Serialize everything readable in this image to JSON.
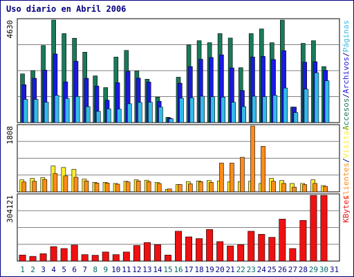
{
  "title": "Uso diario en Abril 2006",
  "colors": {
    "title": "#000080",
    "frame": "#000000",
    "grid": "#808080",
    "axis_label_weekday": "#000080",
    "axis_label_weekend": "#006666",
    "accesos": "#1a7a5a",
    "archivos": "#1a1ae0",
    "paginas": "#33bbe8",
    "visitas": "#ffee33",
    "clientes": "#ff8c1a",
    "kbytes": "#ee1111"
  },
  "chart_data": [
    {
      "type": "bar",
      "name": "hits-files-pages",
      "ymax_label": "4630",
      "ylim": [
        0,
        4630
      ],
      "legend": [
        {
          "text": "Accesos",
          "color": "#1a7a5a"
        },
        {
          "text": "/",
          "color": "#000080"
        },
        {
          "text": "Archivos",
          "color": "#1a1ae0"
        },
        {
          "text": "/",
          "color": "#000080"
        },
        {
          "text": "Páginas",
          "color": "#33bbe8"
        }
      ],
      "categories": [
        "1",
        "2",
        "3",
        "4",
        "5",
        "6",
        "7",
        "8",
        "9",
        "10",
        "11",
        "12",
        "13",
        "14",
        "15",
        "16",
        "17",
        "18",
        "19",
        "20",
        "21",
        "22",
        "23",
        "24",
        "25",
        "26",
        "27",
        "28",
        "29",
        "30",
        "31"
      ],
      "weekend": [
        "1",
        "2",
        "8",
        "9",
        "15",
        "16",
        "22",
        "23",
        "29",
        "30"
      ],
      "series": [
        {
          "name": "Accesos",
          "values": [
            2200,
            2350,
            3480,
            4630,
            4020,
            3810,
            3180,
            2110,
            1580,
            2960,
            3260,
            2330,
            1960,
            1150,
            240,
            2050,
            3510,
            3700,
            3610,
            4020,
            3820,
            2480,
            4020,
            4230,
            3610,
            4630,
            700,
            3580,
            3700,
            2530,
            0
          ]
        },
        {
          "name": "Archivos",
          "values": [
            1710,
            2000,
            2370,
            3100,
            1840,
            2770,
            2000,
            1650,
            1010,
            1800,
            2320,
            2010,
            1830,
            960,
            200,
            1780,
            2530,
            2860,
            2940,
            3060,
            2470,
            1450,
            2960,
            2990,
            2850,
            3250,
            700,
            2730,
            2750,
            2360,
            0
          ]
        },
        {
          "name": "Páginas",
          "values": [
            1050,
            1050,
            920,
            1230,
            1090,
            1180,
            720,
            510,
            620,
            610,
            850,
            910,
            920,
            700,
            170,
            1100,
            1120,
            1190,
            1170,
            1150,
            920,
            720,
            1190,
            1170,
            1230,
            1560,
            450,
            1510,
            2250,
            1890,
            0
          ]
        }
      ]
    },
    {
      "type": "bar",
      "name": "visits-clients",
      "ymax_label": "1808",
      "ylim": [
        0,
        1808
      ],
      "legend": [
        {
          "text": "Clientes",
          "color": "#ff8c1a"
        },
        {
          "text": "/",
          "color": "#000080"
        },
        {
          "text": "Visitas",
          "color": "#ffee33"
        }
      ],
      "categories": [
        "1",
        "2",
        "3",
        "4",
        "5",
        "6",
        "7",
        "8",
        "9",
        "10",
        "11",
        "12",
        "13",
        "14",
        "15",
        "16",
        "17",
        "18",
        "19",
        "20",
        "21",
        "22",
        "23",
        "24",
        "25",
        "26",
        "27",
        "28",
        "29",
        "30",
        "31"
      ],
      "series": [
        {
          "name": "Visitas",
          "values": [
            330,
            370,
            390,
            710,
            670,
            620,
            350,
            260,
            260,
            230,
            290,
            330,
            320,
            260,
            70,
            200,
            280,
            300,
            310,
            300,
            280,
            280,
            290,
            230,
            370,
            310,
            230,
            230,
            330,
            170,
            0
          ]
        },
        {
          "name": "Clientes",
          "values": [
            270,
            290,
            340,
            500,
            440,
            400,
            300,
            240,
            240,
            210,
            270,
            300,
            280,
            230,
            80,
            200,
            220,
            280,
            260,
            790,
            790,
            950,
            1808,
            1250,
            290,
            230,
            130,
            200,
            230,
            150,
            0
          ]
        }
      ]
    },
    {
      "type": "bar",
      "name": "kbytes",
      "ymax_label": "304121",
      "ylim": [
        0,
        304121
      ],
      "legend": [
        {
          "text": "KBytes",
          "color": "#ee1111"
        }
      ],
      "categories": [
        "1",
        "2",
        "3",
        "4",
        "5",
        "6",
        "7",
        "8",
        "9",
        "10",
        "11",
        "12",
        "13",
        "14",
        "15",
        "16",
        "17",
        "18",
        "19",
        "20",
        "21",
        "22",
        "23",
        "24",
        "25",
        "26",
        "27",
        "28",
        "29",
        "30",
        "31"
      ],
      "series": [
        {
          "name": "KBytes",
          "values": [
            28000,
            22000,
            34000,
            67000,
            58000,
            74000,
            30000,
            27000,
            42000,
            30000,
            42000,
            72000,
            86000,
            76000,
            28000,
            138000,
            112000,
            104000,
            146000,
            90000,
            70000,
            76000,
            138000,
            124000,
            110000,
            194000,
            58000,
            188000,
            304121,
            304121,
            0
          ]
        }
      ]
    }
  ]
}
